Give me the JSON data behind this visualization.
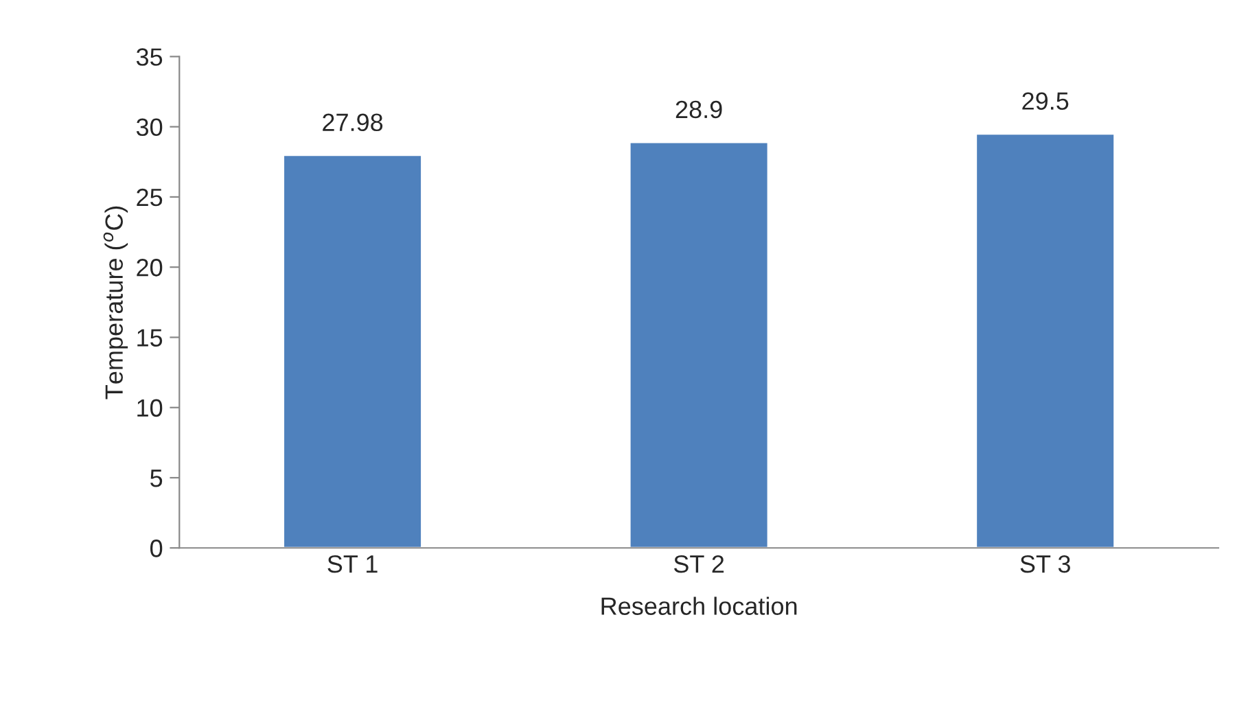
{
  "chart_data": {
    "type": "bar",
    "xlabel": "Research location",
    "ylabel": "Temperature ($^{o}$C)",
    "categories": [
      "ST 1",
      "ST 2",
      "ST 3"
    ],
    "values": [
      27.98,
      28.9,
      29.5
    ],
    "color": "#4f81bd",
    "ylim": [
      0,
      35
    ],
    "yticks": [
      0,
      5,
      10,
      15,
      20,
      25,
      30,
      35
    ],
    "data_labels": true,
    "grid": false,
    "legend": false
  }
}
